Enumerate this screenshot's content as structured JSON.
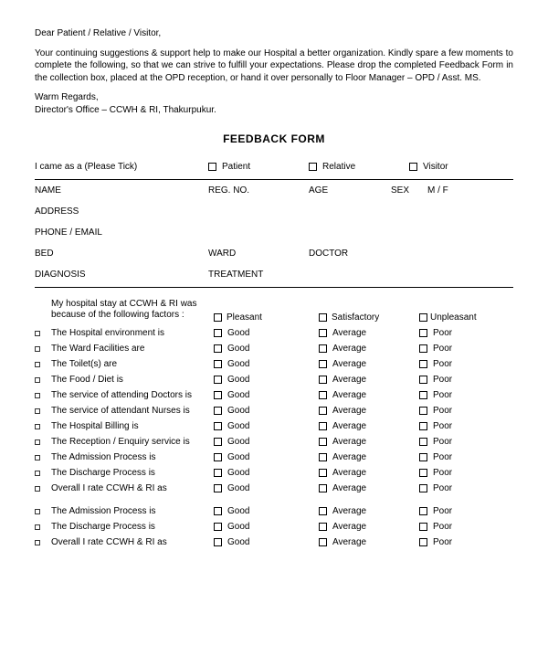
{
  "intro": {
    "salutation": "Dear Patient / Relative / Visitor,",
    "body": "Your continuing suggestions & support help to make our Hospital a better organization. Kindly spare a few moments to complete the following, so that we can strive to fulfill your expectations. Please drop the completed Feedback Form in the collection box, placed at the OPD reception, or hand it over personally to Floor Manager – OPD / Asst. MS.",
    "regards": "Warm Regards,",
    "signoff": "Director's Office – CCWH & RI, Thakurpukur."
  },
  "title": "FEEDBACK FORM",
  "came_as": {
    "label": "I came as a (Please Tick)",
    "options": {
      "patient": "Patient",
      "relative": "Relative",
      "visitor": "Visitor"
    }
  },
  "fields": {
    "name": "NAME",
    "reg": "REG. NO.",
    "age": "AGE",
    "sex": "SEX",
    "mf": "M / F",
    "address": "ADDRESS",
    "phone": "PHONE / EMAIL",
    "bed": "BED",
    "ward": "WARD",
    "doctor": "DOCTOR",
    "diagnosis": "DIAGNOSIS",
    "treatment": "TREATMENT"
  },
  "stay_intro_1": "My hospital stay at CCWH & RI was",
  "stay_intro_2": "because of the following factors :",
  "overall_options": {
    "pleasant": "Pleasant",
    "satisfactory": "Satisfactory",
    "unpleasant": "Unpleasant"
  },
  "rating_options": {
    "good": "Good",
    "average": "Average",
    "poor": "Poor"
  },
  "factors": [
    "The Hospital environment is",
    "The Ward Facilities are",
    "The Toilet(s) are",
    "The Food / Diet is",
    "The service of attending Doctors is",
    "The service of attendant Nurses is",
    "The Hospital Billing is",
    "The Reception / Enquiry service is",
    "The Admission Process is",
    "The Discharge Process is",
    "Overall I rate CCWH & RI as",
    "The Admission Process is",
    "The Discharge Process is",
    "Overall I rate CCWH & RI as"
  ]
}
